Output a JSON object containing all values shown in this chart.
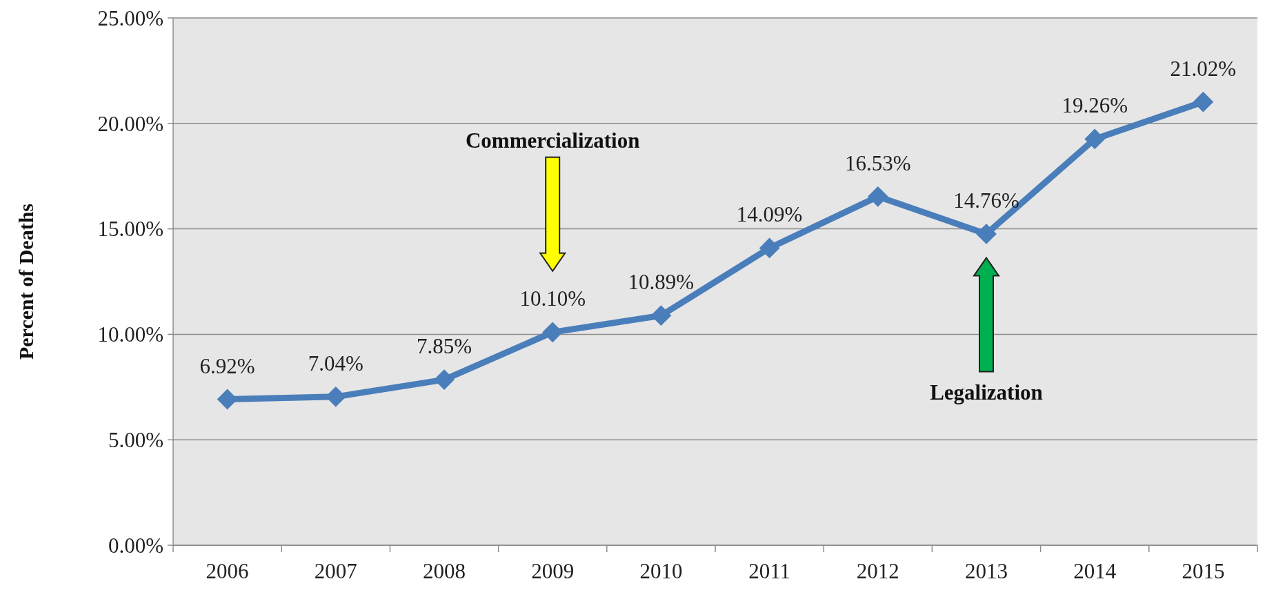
{
  "chart_data": {
    "type": "line",
    "ylabel": "Percent of Deaths",
    "categories": [
      "2006",
      "2007",
      "2008",
      "2009",
      "2010",
      "2011",
      "2012",
      "2013",
      "2014",
      "2015"
    ],
    "series": [
      {
        "color": "#4a7ebb",
        "values": [
          6.92,
          7.04,
          7.85,
          10.1,
          10.89,
          14.09,
          16.53,
          14.76,
          19.26,
          21.02
        ],
        "value_labels": [
          "6.92%",
          "7.04%",
          "7.85%",
          "10.10%",
          "10.89%",
          "14.09%",
          "16.53%",
          "14.76%",
          "19.26%",
          "21.02%"
        ]
      }
    ],
    "ylim": [
      0,
      25
    ],
    "yticks": [
      {
        "value": 0,
        "label": "0.00%"
      },
      {
        "value": 5,
        "label": "5.00%"
      },
      {
        "value": 10,
        "label": "10.00%"
      },
      {
        "value": 15,
        "label": "15.00%"
      },
      {
        "value": 20,
        "label": "20.00%"
      },
      {
        "value": 25,
        "label": "25.00%"
      }
    ],
    "grid": "y",
    "marker": "diamond",
    "line_style": "solid",
    "annotations": [
      "Commercialization",
      "Legalization"
    ]
  }
}
